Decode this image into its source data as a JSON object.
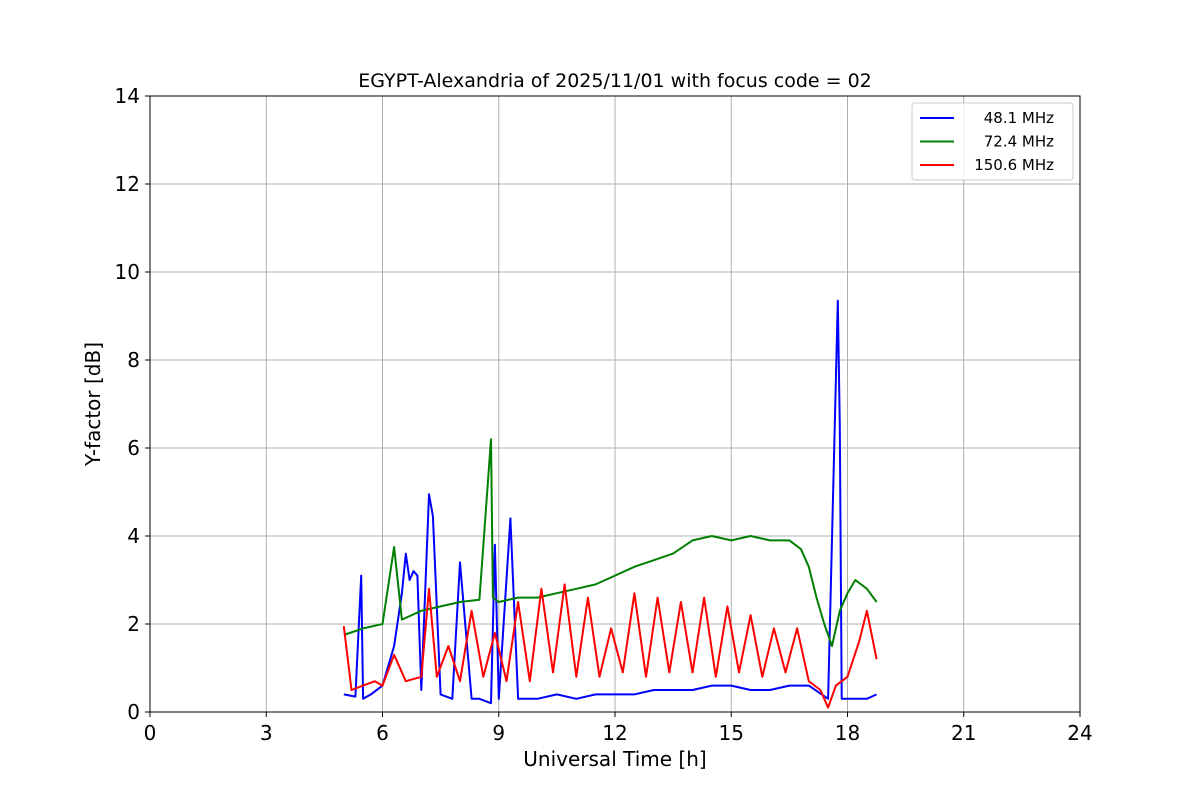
{
  "chart_data": {
    "type": "line",
    "title": "EGYPT-Alexandria of 2025/11/01 with focus code = 02",
    "xlabel": "Universal Time [h]",
    "ylabel": "Y-factor [dB]",
    "xlim": [
      0,
      24
    ],
    "ylim": [
      0,
      14
    ],
    "xticks": [
      "0",
      "3",
      "6",
      "9",
      "12",
      "15",
      "18",
      "21",
      "24"
    ],
    "yticks": [
      "0",
      "2",
      "4",
      "6",
      "8",
      "10",
      "12",
      "14"
    ],
    "grid": true,
    "legend_position": "top-right",
    "series": [
      {
        "name": "48.1 MHz",
        "color": "#0000ff",
        "x": [
          5.0,
          5.3,
          5.45,
          5.5,
          5.7,
          6.0,
          6.3,
          6.5,
          6.6,
          6.7,
          6.8,
          6.9,
          7.0,
          7.2,
          7.3,
          7.5,
          7.8,
          8.0,
          8.3,
          8.5,
          8.8,
          8.9,
          9.0,
          9.3,
          9.5,
          10.0,
          10.5,
          11.0,
          11.5,
          12.0,
          12.5,
          13.0,
          13.5,
          14.0,
          14.5,
          15.0,
          15.5,
          16.0,
          16.5,
          17.0,
          17.5,
          17.75,
          17.8,
          17.85,
          18.0,
          18.5,
          18.75
        ],
        "y": [
          0.4,
          0.35,
          3.1,
          0.3,
          0.4,
          0.6,
          1.5,
          2.7,
          3.6,
          3.0,
          3.2,
          3.1,
          0.5,
          4.95,
          4.45,
          0.4,
          0.3,
          3.4,
          0.3,
          0.3,
          0.2,
          3.8,
          0.3,
          4.4,
          0.3,
          0.3,
          0.4,
          0.3,
          0.4,
          0.4,
          0.4,
          0.5,
          0.5,
          0.5,
          0.6,
          0.6,
          0.5,
          0.5,
          0.6,
          0.6,
          0.3,
          9.35,
          6.5,
          0.3,
          0.3,
          0.3,
          0.4
        ]
      },
      {
        "name": "72.4 MHz",
        "color": "#008000",
        "x": [
          5.0,
          5.5,
          6.0,
          6.3,
          6.5,
          7.0,
          7.5,
          8.0,
          8.5,
          8.8,
          8.85,
          9.0,
          9.5,
          10.0,
          10.5,
          11.0,
          11.5,
          12.0,
          12.5,
          13.0,
          13.5,
          14.0,
          14.5,
          15.0,
          15.5,
          16.0,
          16.5,
          16.8,
          17.0,
          17.2,
          17.4,
          17.6,
          17.8,
          18.0,
          18.2,
          18.5,
          18.75
        ],
        "y": [
          1.75,
          1.9,
          2.0,
          3.75,
          2.1,
          2.3,
          2.4,
          2.5,
          2.55,
          6.2,
          2.6,
          2.5,
          2.6,
          2.6,
          2.7,
          2.8,
          2.9,
          3.1,
          3.3,
          3.45,
          3.6,
          3.9,
          4.0,
          3.9,
          4.0,
          3.9,
          3.9,
          3.7,
          3.3,
          2.6,
          2.0,
          1.5,
          2.3,
          2.7,
          3.0,
          2.8,
          2.5
        ]
      },
      {
        "name": "150.6 MHz",
        "color": "#ff0000",
        "x": [
          5.0,
          5.2,
          5.5,
          5.8,
          6.0,
          6.3,
          6.6,
          7.0,
          7.2,
          7.4,
          7.7,
          8.0,
          8.3,
          8.6,
          8.9,
          9.2,
          9.5,
          9.8,
          10.1,
          10.4,
          10.7,
          11.0,
          11.3,
          11.6,
          11.9,
          12.2,
          12.5,
          12.8,
          13.1,
          13.4,
          13.7,
          14.0,
          14.3,
          14.6,
          14.9,
          15.2,
          15.5,
          15.8,
          16.1,
          16.4,
          16.7,
          17.0,
          17.3,
          17.5,
          17.7,
          18.0,
          18.3,
          18.5,
          18.75
        ],
        "y": [
          1.95,
          0.5,
          0.6,
          0.7,
          0.6,
          1.3,
          0.7,
          0.8,
          2.8,
          0.8,
          1.5,
          0.7,
          2.3,
          0.8,
          1.8,
          0.7,
          2.5,
          0.7,
          2.8,
          0.9,
          2.9,
          0.8,
          2.6,
          0.8,
          1.9,
          0.9,
          2.7,
          0.8,
          2.6,
          0.9,
          2.5,
          0.9,
          2.6,
          0.8,
          2.4,
          0.9,
          2.2,
          0.8,
          1.9,
          0.9,
          1.9,
          0.7,
          0.5,
          0.1,
          0.6,
          0.8,
          1.6,
          2.3,
          1.2
        ]
      }
    ]
  }
}
